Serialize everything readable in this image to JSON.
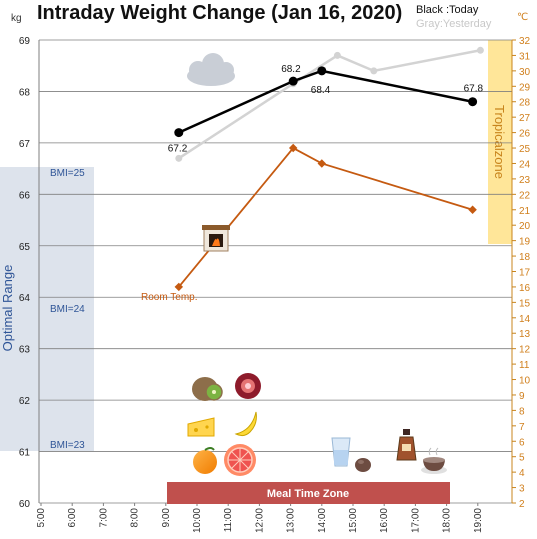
{
  "chart_data": {
    "type": "line",
    "title": "Intraday Weight Change (Jan 16, 2020)",
    "legend": {
      "today": "Black :Today",
      "yesterday": "Gray:Yesterday",
      "position": "top-right"
    },
    "left_axis": {
      "unit": "kg",
      "range": [
        60,
        69
      ],
      "ticks": [
        "60",
        "61",
        "62",
        "63",
        "64",
        "65",
        "66",
        "67",
        "68",
        "69"
      ]
    },
    "right_axis": {
      "unit": "℃",
      "range": [
        2,
        32
      ],
      "ticks": [
        "2",
        "3",
        "4",
        "5",
        "6",
        "7",
        "8",
        "9",
        "10",
        "11",
        "12",
        "13",
        "14",
        "15",
        "16",
        "17",
        "18",
        "19",
        "20",
        "21",
        "22",
        "23",
        "24",
        "25",
        "26",
        "27",
        "28",
        "29",
        "30",
        "31",
        "32"
      ]
    },
    "x_axis": {
      "ticks": [
        "5:00",
        "6:00",
        "7:00",
        "8:00",
        "9:00",
        "10:00",
        "11:00",
        "12:00",
        "13:00",
        "14:00",
        "15:00",
        "16:00",
        "17:00",
        "18:00",
        "19:00"
      ]
    },
    "series": [
      {
        "name": "Today",
        "color": "#000000",
        "x": [
          "9:25",
          "13:05",
          "14:00",
          "18:50"
        ],
        "y": [
          67.2,
          68.2,
          68.4,
          67.8
        ],
        "labels": [
          "67.2",
          "68.2",
          "68.4",
          "67.8"
        ]
      },
      {
        "name": "Yesterday",
        "color": "#d3d3d3",
        "x": [
          "9:25",
          "13:05",
          "14:30",
          "15:40",
          "19:05"
        ],
        "y": [
          66.7,
          68.15,
          68.7,
          68.4,
          68.8
        ]
      },
      {
        "name": "Room Temp.",
        "color": "#c55a11",
        "x": [
          "9:25",
          "13:05",
          "14:00",
          "18:50"
        ],
        "y_celsius": [
          16,
          25,
          24,
          21
        ]
      }
    ],
    "bands": [
      {
        "label": "Optimal Range",
        "color": "#dde3ec"
      },
      {
        "label": "Tropicalzone",
        "color": "#ffe699"
      },
      {
        "label": "Meal Time Zone",
        "color": "#c0504d"
      }
    ],
    "bmi_labels": [
      "BMI=25",
      "BMI=24",
      "BMI=23"
    ],
    "room_label": "Room Temp.",
    "grid": true,
    "icons": [
      "cloud-icon",
      "fireplace-icon",
      "kiwi-icon",
      "pomegranate-icon",
      "cheese-icon",
      "banana-icon",
      "orange-icon",
      "grapefruit-icon",
      "water-glass-icon",
      "chocolate-icon",
      "brandy-icon",
      "soup-icon"
    ]
  }
}
